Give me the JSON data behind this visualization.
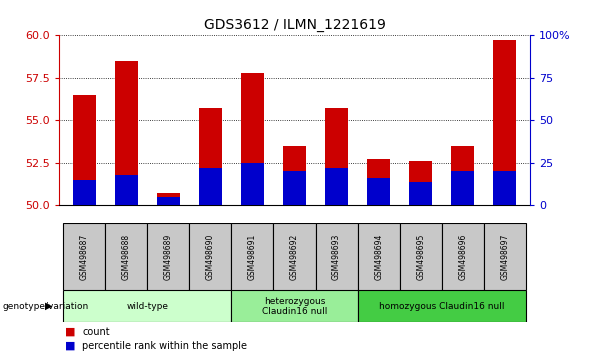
{
  "title": "GDS3612 / ILMN_1221619",
  "samples": [
    "GSM498687",
    "GSM498688",
    "GSM498689",
    "GSM498690",
    "GSM498691",
    "GSM498692",
    "GSM498693",
    "GSM498694",
    "GSM498695",
    "GSM498696",
    "GSM498697"
  ],
  "red_values": [
    56.5,
    58.5,
    50.7,
    55.7,
    57.8,
    53.5,
    55.7,
    52.7,
    52.6,
    53.5,
    59.7
  ],
  "blue_percentiles": [
    15,
    18,
    5,
    22,
    25,
    20,
    22,
    16,
    14,
    20,
    20
  ],
  "ymin": 50,
  "ymax": 60,
  "yticks": [
    50,
    52.5,
    55,
    57.5,
    60
  ],
  "y2min": 0,
  "y2max": 100,
  "y2ticks": [
    0,
    25,
    50,
    75,
    100
  ],
  "bar_width": 0.55,
  "red_color": "#cc0000",
  "blue_color": "#0000cc",
  "group_labels": [
    "wild-type",
    "heterozygous\nClaudin16 null",
    "homozygous Claudin16 null"
  ],
  "group_colors_light": [
    "#ccffcc",
    "#99ee99",
    "#55cc55"
  ],
  "group_ranges": [
    [
      0,
      3
    ],
    [
      4,
      6
    ],
    [
      7,
      10
    ]
  ],
  "legend_count": "count",
  "legend_pct": "percentile rank within the sample",
  "genotype_label": "genotype/variation",
  "ylabel_left_color": "#cc0000",
  "ylabel_right_color": "#0000cc",
  "cell_bg": "#c8c8c8"
}
